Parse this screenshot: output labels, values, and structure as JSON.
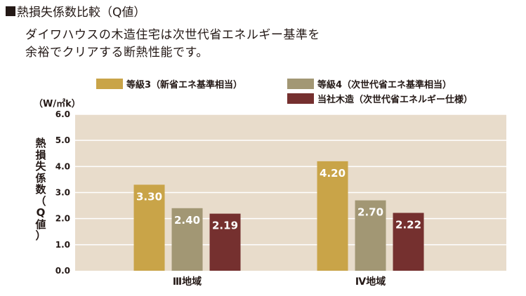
{
  "heading": "熱損失係数比較（Q値）",
  "subtitle": {
    "line1": "ダイワハウスの木造住宅は次世代省エネルギー基準を",
    "line2": "余裕でクリアする断熱性能です。"
  },
  "colors": {
    "plot_bg": "#e8dccb",
    "gridline": "#ffffff",
    "series": [
      "#c9a448",
      "#a29774",
      "#75302f"
    ],
    "axis_text": "#231815",
    "value_label": "#ffffff"
  },
  "chart_data": {
    "type": "bar",
    "title": "熱損失係数比較（Q値）",
    "ylabel": "熱損失係数（Q値）",
    "yunit": "（W/㎡k）",
    "xlabel": "",
    "ylim": [
      0,
      6
    ],
    "yticks": [
      "0.0",
      "1.0",
      "2.0",
      "3.0",
      "4.0",
      "5.0",
      "6.0"
    ],
    "categories": [
      "Ⅲ地域",
      "Ⅳ地域"
    ],
    "series": [
      {
        "name": "等級3（新省エネ基準相当）",
        "values": [
          3.3,
          4.2
        ],
        "labels": [
          "3.30",
          "4.20"
        ]
      },
      {
        "name": "等級4（次世代省エネ基準相当）",
        "values": [
          2.4,
          2.7
        ],
        "labels": [
          "2.40",
          "2.70"
        ]
      },
      {
        "name": "当社木造（次世代省エネルギー仕様）",
        "values": [
          2.19,
          2.22
        ],
        "labels": [
          "2.19",
          "2.22"
        ]
      }
    ],
    "legend_position": "top",
    "grid": true
  }
}
